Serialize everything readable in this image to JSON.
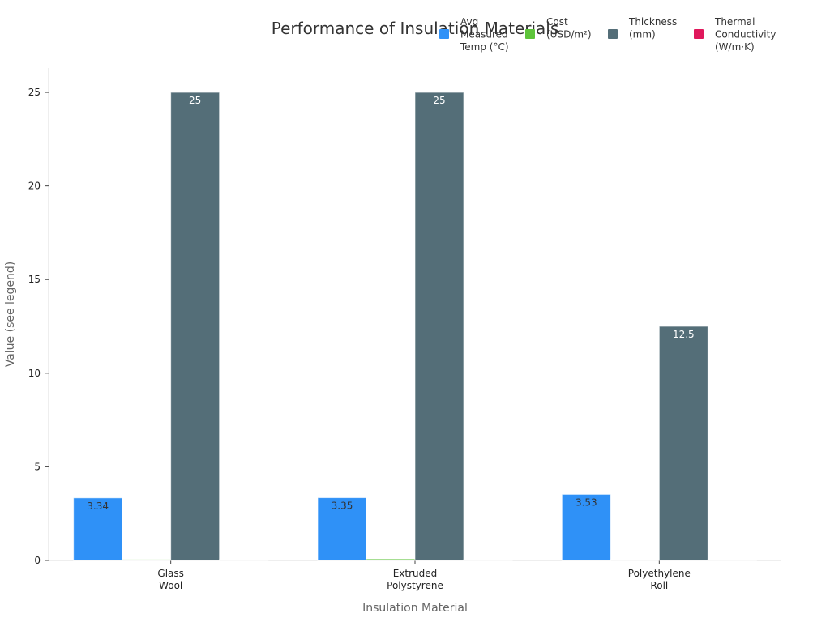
{
  "chart_data": {
    "type": "bar",
    "title": "Performance of Insulation Materials",
    "xlabel": "Insulation Material",
    "ylabel": "Value (see legend)",
    "ylim": [
      0,
      26.3
    ],
    "yticks": [
      0,
      5,
      10,
      15,
      20,
      25
    ],
    "categories": [
      [
        "Glass",
        "Wool"
      ],
      [
        "Extruded",
        "Polystyrene"
      ],
      [
        "Polyethylene",
        "Roll"
      ]
    ],
    "legend_position": "top-right",
    "grid": false,
    "series": [
      {
        "name": [
          "Avg",
          "Measured",
          "Temp (°C)"
        ],
        "color": "#2f91f7",
        "values": [
          3.34,
          3.35,
          3.53
        ],
        "labels": [
          "3.34",
          "3.35",
          "3.53"
        ],
        "label_color": "#333333"
      },
      {
        "name": [
          "Cost",
          "(USD/m²)"
        ],
        "color": "#5dc43a",
        "values": [
          0.05,
          0.08,
          0.02
        ],
        "labels": [
          "",
          "",
          ""
        ],
        "label_color": "#333333"
      },
      {
        "name": [
          "Thickness",
          "(mm)"
        ],
        "color": "#546e78",
        "values": [
          25,
          25,
          12.5
        ],
        "labels": [
          "25",
          "25",
          "12.5"
        ],
        "label_color": "#ffffff"
      },
      {
        "name": [
          "Thermal",
          "Conductivity",
          "(W/m·K)"
        ],
        "color": "#e0185c",
        "values": [
          0.04,
          0.03,
          0.04
        ],
        "labels": [
          "",
          "",
          ""
        ],
        "label_color": "#333333"
      }
    ]
  }
}
